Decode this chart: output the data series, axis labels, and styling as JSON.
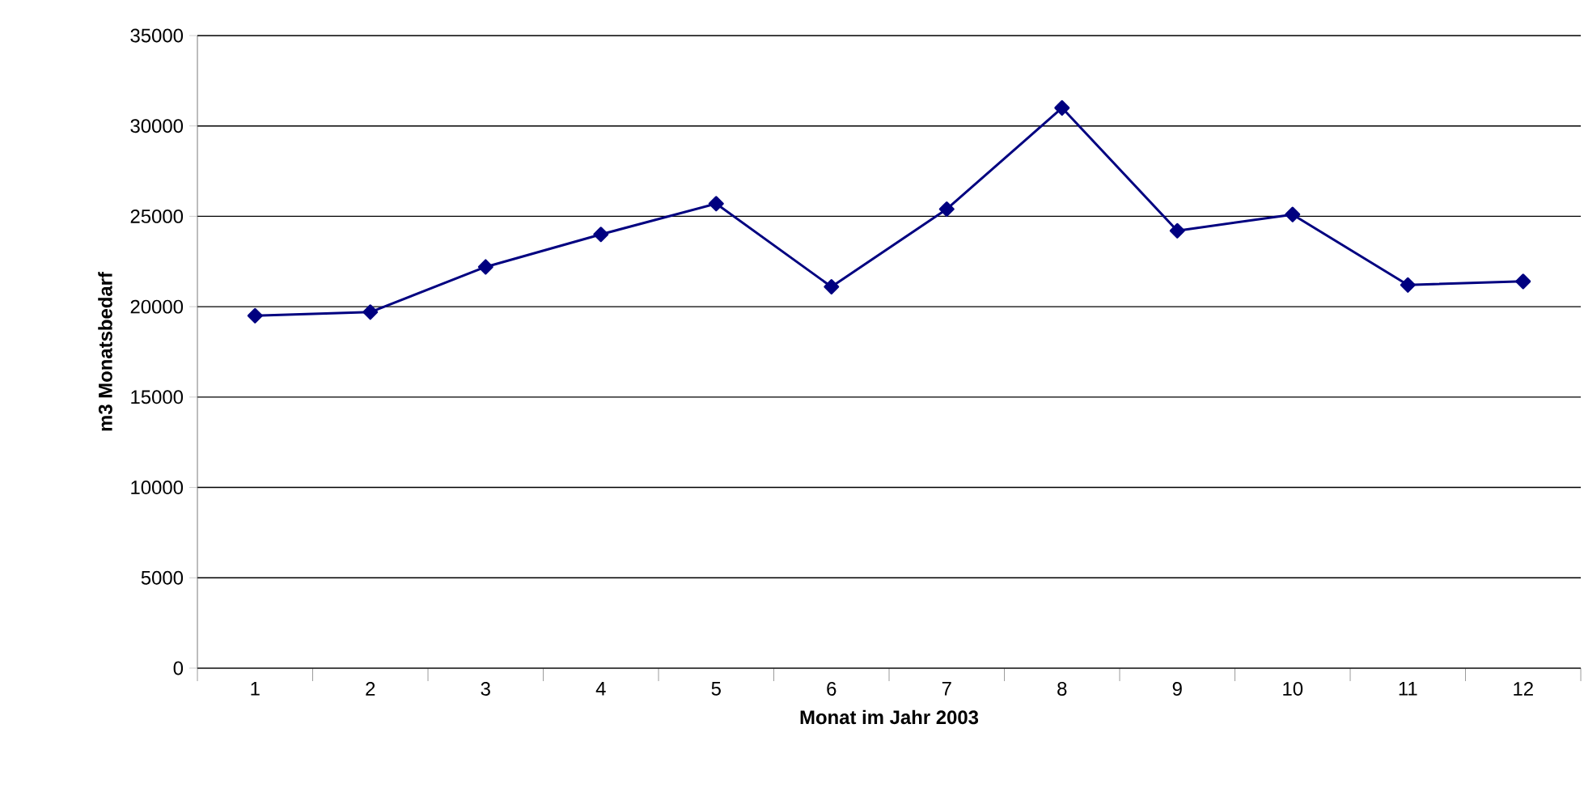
{
  "chart_data": {
    "type": "line",
    "xlabel": "Monat im Jahr 2003",
    "ylabel": "m3 Monatsbedarf",
    "categories": [
      "1",
      "2",
      "3",
      "4",
      "5",
      "6",
      "7",
      "8",
      "9",
      "10",
      "11",
      "12"
    ],
    "series": [
      {
        "color": "#000080",
        "values": [
          19500,
          19700,
          22200,
          24000,
          25700,
          21100,
          25400,
          31000,
          24200,
          25100,
          21200,
          21400
        ]
      }
    ],
    "ylim": [
      0,
      35000
    ],
    "yticks": [
      0,
      5000,
      10000,
      15000,
      20000,
      25000,
      30000,
      35000
    ],
    "grid": "y",
    "marker": "diamond",
    "line_style": "solid"
  }
}
